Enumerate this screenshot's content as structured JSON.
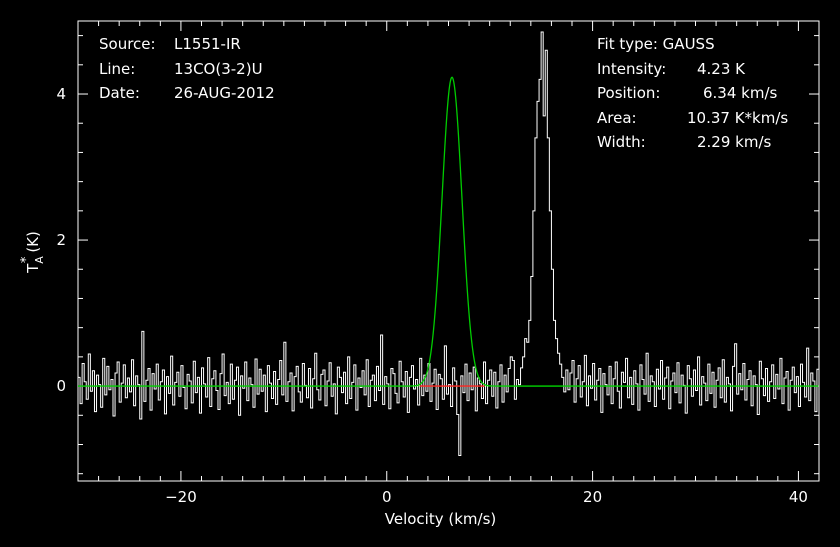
{
  "chart_data": {
    "type": "line",
    "xlabel": "Velocity (km/s)",
    "ylabel": "T",
    "ylabel_sub": "A",
    "ylabel_sup": "*",
    "ylabel_unit": "(K)",
    "xlim": [
      -30,
      42
    ],
    "ylim": [
      -1.3,
      5.0
    ],
    "xticks": [
      -20,
      0,
      20,
      40
    ],
    "yticks": [
      0,
      2,
      4
    ],
    "grid": false,
    "colors": {
      "spectrum": "#ffffff",
      "fit": "#00cc00",
      "baseline_fit": "#00cc00",
      "fit_window": "#ff2020",
      "axes": "#ffffff",
      "background": "#000000"
    },
    "fit": {
      "type": "GAUSS",
      "amplitude": 4.23,
      "center": 6.34,
      "fwhm": 2.29,
      "window": [
        3.2,
        9.5
      ]
    },
    "series": [
      {
        "kind": "spectrum_histogram",
        "x_start": -29.9,
        "dx": 0.2,
        "values": [
          0.12,
          -0.24,
          0.31,
          0.06,
          -0.18,
          0.44,
          -0.07,
          0.21,
          -0.35,
          0.15,
          0.02,
          -0.29,
          0.38,
          -0.12,
          0.27,
          -0.05,
          0.09,
          -0.41,
          0.18,
          0.33,
          -0.22,
          0.04,
          0.29,
          -0.16,
          0.11,
          -0.08,
          0.36,
          -0.27,
          0.14,
          0.02,
          -0.45,
          0.75,
          -0.21,
          0.08,
          0.24,
          -0.33,
          0.17,
          -0.04,
          0.3,
          -0.19,
          0.06,
          0.22,
          -0.38,
          0.13,
          -0.1,
          0.41,
          -0.26,
          0.05,
          0.19,
          -0.14,
          0.28,
          -0.02,
          -0.31,
          0.16,
          0.07,
          -0.23,
          0.34,
          -0.09,
          0.12,
          -0.37,
          0.25,
          0.03,
          -0.15,
          0.39,
          -0.28,
          0.1,
          0.21,
          -0.06,
          -0.32,
          0.17,
          0.44,
          -0.13,
          0.05,
          -0.24,
          0.3,
          -0.18,
          0.08,
          0.26,
          -0.4,
          0.14,
          -0.03,
          0.33,
          -0.2,
          0.11,
          0.02,
          -0.29,
          0.37,
          -0.11,
          0.23,
          -0.07,
          0.15,
          -0.35,
          0.28,
          0.04,
          -0.17,
          0.2,
          -0.25,
          0.09,
          0.35,
          -0.12,
          0.6,
          -0.21,
          0.06,
          0.18,
          -0.34,
          0.13,
          0.27,
          -0.08,
          -0.22,
          0.31,
          0.01,
          -0.16,
          0.24,
          -0.3,
          0.1,
          0.45,
          -0.05,
          -0.19,
          0.16,
          0.22,
          -0.27,
          0.07,
          0.32,
          -0.14,
          0.03,
          -0.38,
          0.26,
          0.12,
          -0.09,
          0.19,
          -0.24,
          0.4,
          -0.17,
          0.05,
          0.29,
          -0.33,
          0.11,
          -0.02,
          0.21,
          -0.12,
          0.36,
          -0.28,
          0.08,
          0.15,
          -0.2,
          0.27,
          -0.06,
          0.7,
          -0.25,
          0.13,
          0.03,
          -0.31,
          0.24,
          0.17,
          -0.1,
          -0.23,
          0.34,
          0.06,
          -0.15,
          0.2,
          -0.36,
          0.12,
          0.28,
          -0.04,
          0.09,
          -0.26,
          0.38,
          -0.13,
          0.15,
          -0.07,
          0.31,
          -0.21,
          0.04,
          0.23,
          -0.32,
          0.16,
          0.1,
          -0.18,
          0.55,
          -0.11,
          0.02,
          -0.28,
          0.25,
          0.07,
          -0.39,
          -0.95,
          0.14,
          -0.09,
          0.3,
          -0.2,
          0.18,
          -0.05,
          0.26,
          -0.34,
          0.11,
          0.03,
          -0.17,
          0.33,
          -0.24,
          0.08,
          0.22,
          -0.14,
          0.19,
          -0.3,
          0.06,
          0.29,
          -0.22,
          0.15,
          -0.08,
          0.24,
          0.4,
          0.35,
          -0.18,
          0.09,
          0.02,
          0.25,
          0.4,
          0.65,
          0.6,
          0.9,
          1.5,
          2.4,
          3.4,
          3.9,
          4.2,
          4.85,
          3.7,
          4.6,
          3.4,
          2.4,
          1.6,
          0.9,
          0.65,
          0.45,
          0.3,
          0.12,
          -0.08,
          0.22,
          -0.05,
          0.18,
          0.35,
          -0.22,
          0.1,
          0.28,
          -0.15,
          0.06,
          0.42,
          -0.27,
          0.14,
          -0.03,
          0.31,
          -0.19,
          0.08,
          0.24,
          -0.36,
          0.17,
          0.02,
          -0.12,
          0.27,
          -0.24,
          0.1,
          0.33,
          -0.07,
          -0.3,
          0.19,
          0.05,
          0.38,
          -0.16,
          0.12,
          -0.25,
          0.21,
          0.03,
          -0.33,
          0.29,
          0.09,
          -0.11,
          0.45,
          -0.21,
          0.14,
          0.06,
          -0.28,
          0.23,
          -0.04,
          0.35,
          -0.18,
          0.11,
          0.26,
          -0.31,
          0.07,
          0.18,
          -0.09,
          0.32,
          -0.23,
          0.15,
          0.01,
          -0.37,
          0.28,
          0.1,
          -0.14,
          0.22,
          -0.06,
          0.4,
          -0.26,
          0.13,
          0.04,
          -0.2,
          0.3,
          -0.1,
          0.19,
          -0.29,
          0.08,
          0.25,
          -0.16,
          0.36,
          -0.22,
          0.12,
          0.03,
          -0.34,
          0.27,
          0.58,
          -0.11,
          0.17,
          -0.05,
          0.31,
          -0.19,
          0.09,
          0.21,
          -0.27,
          0.14,
          0.02,
          -0.39,
          0.34,
          0.1,
          -0.13,
          0.24,
          -0.21,
          0.06,
          0.29,
          -0.17,
          0.16,
          -0.04,
          0.38,
          -0.24,
          0.11,
          0.2,
          -0.33,
          0.08,
          0.26,
          -0.09,
          0.13,
          -0.28,
          0.3,
          0.05,
          -0.15,
          0.52,
          -0.2,
          0.18,
          0.07,
          -0.35,
          0.23,
          -0.02,
          0.32,
          -0.12,
          0.15,
          0.03,
          -0.26,
          0.28,
          0.11,
          -0.18,
          0.2,
          -0.07,
          0.35,
          -0.23,
          0.09,
          0.24,
          -0.3,
          0.14,
          -0.01,
          0.27,
          0.44,
          -0.15,
          0.06
        ]
      },
      {
        "kind": "gaussian_fit",
        "name": "",
        "x_range": [
          -30,
          42
        ]
      }
    ]
  },
  "annotations": {
    "left": [
      {
        "label": "Source:",
        "value": "L1551-IR"
      },
      {
        "label": "Line:",
        "value": "13CO(3-2)U"
      },
      {
        "label": "Date:",
        "value": "26-AUG-2012"
      }
    ],
    "right": [
      {
        "label": "Fit type: GAUSS",
        "value": ""
      },
      {
        "label": "Intensity:",
        "value": "4.23 K"
      },
      {
        "label": "Position:",
        "value": "6.34 km/s"
      },
      {
        "label": "Area:",
        "value": "10.37 K*km/s"
      },
      {
        "label": "Width:",
        "value": "2.29 km/s"
      }
    ]
  }
}
